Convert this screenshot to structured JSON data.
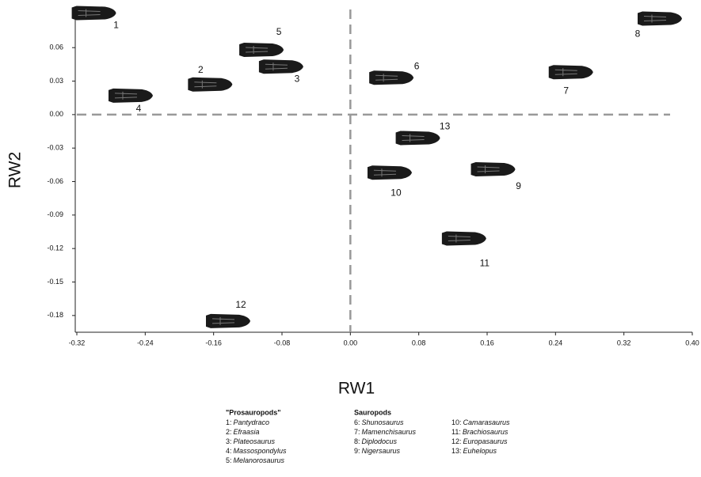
{
  "chart_data": {
    "type": "scatter",
    "x_label": "RW1",
    "y_label": "RW2",
    "xlim": [
      -0.32,
      0.4
    ],
    "xticks": [
      -0.32,
      -0.24,
      -0.16,
      -0.08,
      {
        "value": 0,
        "label": "0.00"
      },
      0.08,
      0.16,
      0.24,
      0.32,
      {
        "value": 0.4,
        "label": "0.40"
      }
    ],
    "ylim": [
      -0.195,
      0.097
    ],
    "yticks": [
      0.06,
      {
        "value": 0.03,
        "label": "0.03"
      },
      {
        "value": 0,
        "label": "0.00"
      },
      -0.03,
      -0.06,
      -0.09,
      -0.12,
      -0.15,
      -0.18
    ],
    "color": "#1a1a1a",
    "series": [
      {
        "labels": [
          "1",
          "2",
          "3",
          "4",
          "5",
          "6",
          "7",
          "8",
          "9",
          "10",
          "11",
          "12",
          "13"
        ],
        "x": [
          -0.3,
          -0.164,
          -0.081,
          -0.257,
          -0.104,
          0.048,
          0.258,
          0.362,
          0.167,
          0.046,
          0.133,
          -0.143,
          0.079
        ],
        "values": [
          0.091,
          0.027,
          0.043,
          0.017,
          0.058,
          0.033,
          0.038,
          0.086,
          -0.049,
          -0.052,
          -0.111,
          -0.185,
          -0.021
        ]
      }
    ],
    "legend": [
      {
        "title": "\"Prosauropods\"",
        "items": [
          {
            "key": "1:",
            "name": "Pantydraco"
          },
          {
            "key": "2:",
            "name": "Efraasia"
          },
          {
            "key": "3:",
            "name": "Plateosaurus"
          },
          {
            "key": "4:",
            "name": "Massospondylus"
          },
          {
            "key": "5:",
            "name": "Melanorosaurus"
          }
        ]
      },
      {
        "title": "Sauropods",
        "items": [
          {
            "key": "6:",
            "name": "Shunosaurus"
          },
          {
            "key": "7:",
            "name": "Mamenchisaurus"
          },
          {
            "key": "8:",
            "name": "Diplodocus"
          },
          {
            "key": "9:",
            "name": "Nigersaurus"
          }
        ]
      },
      {
        "items": [
          {
            "key": "10:",
            "name": "Camarasaurus"
          },
          {
            "key": "11:",
            "name": "Brachiosaurus"
          },
          {
            "key": "12:",
            "name": "Europasaurus"
          },
          {
            "key": "13:",
            "name": "Euhelopus"
          }
        ]
      }
    ]
  }
}
